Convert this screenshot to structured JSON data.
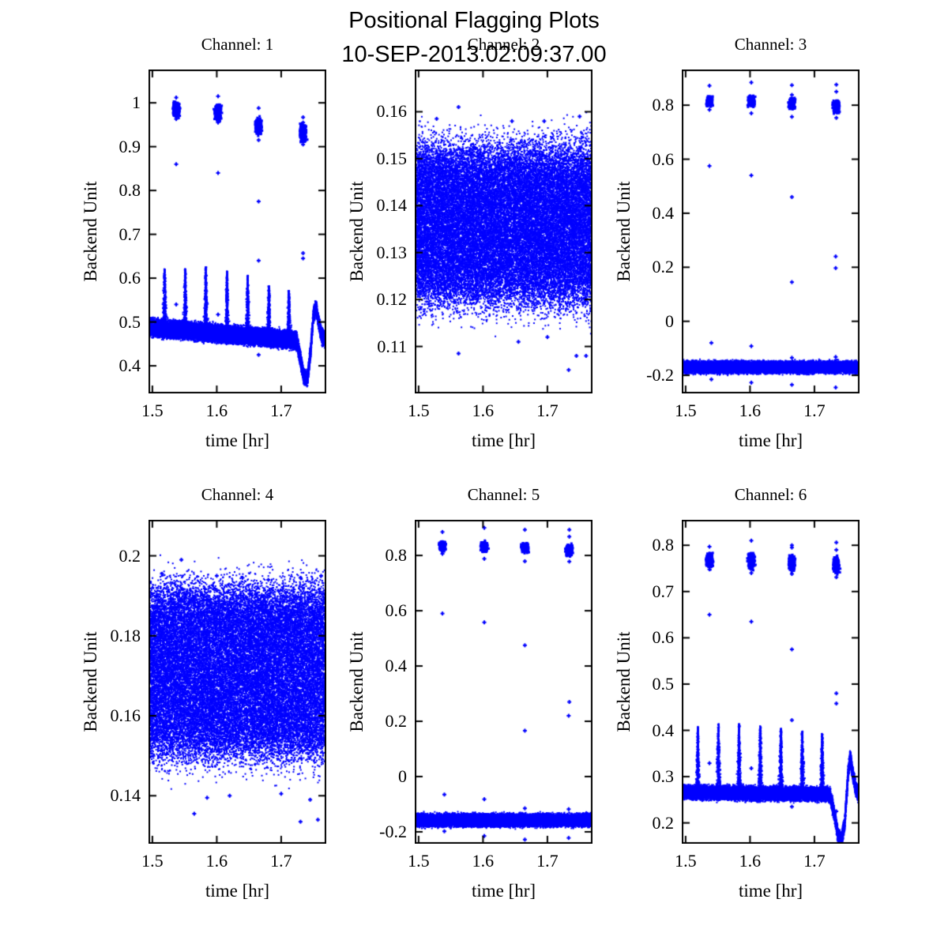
{
  "figure": {
    "title": "Positional Flagging Plots",
    "subtitle": "10-SEP-2013.02:09:37.00",
    "background_color": "#ffffff",
    "axis_color": "#000000",
    "marker_color": "#0000ff"
  },
  "chart_data": [
    {
      "type": "scatter",
      "title": "Channel: 1",
      "xlabel": "time [hr]",
      "ylabel": "Backend Unit",
      "marker": "+",
      "marker_color": "#0000ff",
      "grid": false,
      "legend": "none",
      "xlim": [
        1.494,
        1.77
      ],
      "ylim": [
        0.337,
        1.076
      ],
      "xticks": {
        "values": [
          1.5,
          1.6,
          1.7
        ],
        "labels": [
          "1.5",
          "1.6",
          "1.7"
        ]
      },
      "yticks": {
        "values": [
          0.4,
          0.5,
          0.6,
          0.7,
          0.8,
          0.9,
          1.0
        ],
        "labels": [
          "0.4",
          "0.5",
          "0.6",
          "0.7",
          "0.8",
          "0.9",
          "1"
        ]
      },
      "components": [
        {
          "kind": "trend_band",
          "x_range": [
            1.494,
            1.724
          ],
          "y_start": 0.488,
          "y_end": 0.458,
          "y_spread": 0.019,
          "n": 9000
        },
        {
          "kind": "spikes",
          "x": [
            1.519,
            1.551,
            1.583,
            1.616,
            1.648,
            1.681,
            1.712
          ],
          "tops": [
            0.622,
            0.622,
            0.626,
            0.616,
            0.606,
            0.582,
            0.572
          ],
          "bases": [
            0.486,
            0.482,
            0.478,
            0.474,
            0.47,
            0.466,
            0.462
          ],
          "n_per": 380
        },
        {
          "kind": "path_band",
          "points": [
            [
              1.724,
              0.46
            ],
            [
              1.731,
              0.408
            ],
            [
              1.735,
              0.374
            ],
            [
              1.741,
              0.372
            ],
            [
              1.746,
              0.438
            ],
            [
              1.75,
              0.515
            ],
            [
              1.754,
              0.535
            ],
            [
              1.758,
              0.5
            ],
            [
              1.763,
              0.468
            ],
            [
              1.768,
              0.458
            ]
          ],
          "y_spread": 0.013,
          "n": 2600
        },
        {
          "kind": "clusters",
          "x": [
            1.537,
            1.602,
            1.665,
            1.734
          ],
          "y": [
            0.985,
            0.977,
            0.948,
            0.931
          ],
          "x_spread": 0.004,
          "y_spread": [
            0.012,
            0.013,
            0.012,
            0.016
          ],
          "n_per": 240
        },
        {
          "kind": "points",
          "pts": [
            [
              1.537,
              1.012
            ],
            [
              1.537,
              0.963
            ],
            [
              1.537,
              0.86
            ],
            [
              1.537,
              0.54
            ],
            [
              1.602,
              1.015
            ],
            [
              1.602,
              0.955
            ],
            [
              1.602,
              0.84
            ],
            [
              1.602,
              0.517
            ],
            [
              1.602,
              0.462
            ],
            [
              1.665,
              0.988
            ],
            [
              1.665,
              0.915
            ],
            [
              1.665,
              0.775
            ],
            [
              1.665,
              0.64
            ],
            [
              1.665,
              0.425
            ],
            [
              1.734,
              0.967
            ],
            [
              1.734,
              0.955
            ],
            [
              1.734,
              0.905
            ],
            [
              1.734,
              0.657
            ],
            [
              1.734,
              0.645
            ]
          ]
        }
      ]
    },
    {
      "type": "scatter",
      "title": "Channel: 2",
      "xlabel": "time [hr]",
      "ylabel": "Backend Unit",
      "marker": "+",
      "marker_color": "#0000ff",
      "grid": false,
      "legend": "none",
      "xlim": [
        1.494,
        1.77
      ],
      "ylim": [
        0.1,
        0.169
      ],
      "xticks": {
        "values": [
          1.5,
          1.6,
          1.7
        ],
        "labels": [
          "1.5",
          "1.6",
          "1.7"
        ]
      },
      "yticks": {
        "values": [
          0.11,
          0.12,
          0.13,
          0.14,
          0.15,
          0.16
        ],
        "labels": [
          "0.11",
          "0.12",
          "0.13",
          "0.14",
          "0.15",
          "0.16"
        ]
      },
      "components": [
        {
          "kind": "noise_band",
          "x_range": [
            1.494,
            1.768
          ],
          "y_center": 0.136,
          "y_core": 0.0145,
          "y_tail": 0.0032,
          "n": 30000
        },
        {
          "kind": "points",
          "pts": [
            [
              1.528,
              0.1585
            ],
            [
              1.562,
              0.161
            ],
            [
              1.645,
              0.158
            ],
            [
              1.695,
              0.158
            ],
            [
              1.75,
              0.159
            ],
            [
              1.562,
              0.1085
            ],
            [
              1.655,
              0.111
            ],
            [
              1.7,
              0.112
            ],
            [
              1.733,
              0.105
            ],
            [
              1.745,
              0.108
            ],
            [
              1.76,
              0.108
            ]
          ]
        }
      ]
    },
    {
      "type": "scatter",
      "title": "Channel: 3",
      "xlabel": "time [hr]",
      "ylabel": "Backend Unit",
      "marker": "+",
      "marker_color": "#0000ff",
      "grid": false,
      "legend": "none",
      "xlim": [
        1.494,
        1.77
      ],
      "ylim": [
        -0.267,
        0.932
      ],
      "xticks": {
        "values": [
          1.5,
          1.6,
          1.7
        ],
        "labels": [
          "1.5",
          "1.6",
          "1.7"
        ]
      },
      "yticks": {
        "values": [
          -0.2,
          0.0,
          0.2,
          0.4,
          0.6,
          0.8
        ],
        "labels": [
          "-0.2",
          "0",
          "0.2",
          "0.4",
          "0.6",
          "0.8"
        ]
      },
      "components": [
        {
          "kind": "noise_band",
          "x_range": [
            1.494,
            1.768
          ],
          "y_center": -0.17,
          "y_core": 0.02,
          "y_tail": 0.004,
          "n": 9500
        },
        {
          "kind": "clusters",
          "x": [
            1.537,
            1.602,
            1.665,
            1.734
          ],
          "y": [
            0.812,
            0.815,
            0.806,
            0.795
          ],
          "x_spread": 0.004,
          "y_spread": [
            0.014,
            0.014,
            0.015,
            0.018
          ],
          "n_per": 230
        },
        {
          "kind": "points",
          "pts": [
            [
              1.537,
              0.872
            ],
            [
              1.602,
              0.884
            ],
            [
              1.665,
              0.874
            ],
            [
              1.665,
              0.838
            ],
            [
              1.734,
              0.876
            ],
            [
              1.734,
              0.85
            ],
            [
              1.537,
              0.783
            ],
            [
              1.602,
              0.77
            ],
            [
              1.665,
              0.757
            ],
            [
              1.734,
              0.753
            ],
            [
              1.537,
              0.575
            ],
            [
              1.602,
              0.54
            ],
            [
              1.665,
              0.46
            ],
            [
              1.665,
              0.145
            ],
            [
              1.733,
              0.24
            ],
            [
              1.733,
              0.197
            ],
            [
              1.54,
              -0.08
            ],
            [
              1.602,
              -0.092
            ],
            [
              1.665,
              -0.135
            ],
            [
              1.733,
              -0.132
            ],
            [
              1.54,
              -0.215
            ],
            [
              1.602,
              -0.227
            ],
            [
              1.665,
              -0.235
            ],
            [
              1.733,
              -0.245
            ]
          ]
        }
      ]
    },
    {
      "type": "scatter",
      "title": "Channel: 4",
      "xlabel": "time [hr]",
      "ylabel": "Backend Unit",
      "marker": "+",
      "marker_color": "#0000ff",
      "grid": false,
      "legend": "none",
      "xlim": [
        1.494,
        1.77
      ],
      "ylim": [
        0.128,
        0.209
      ],
      "xticks": {
        "values": [
          1.5,
          1.6,
          1.7
        ],
        "labels": [
          "1.5",
          "1.6",
          "1.7"
        ]
      },
      "yticks": {
        "values": [
          0.14,
          0.16,
          0.18,
          0.2
        ],
        "labels": [
          "0.14",
          "0.16",
          "0.18",
          "0.2"
        ]
      },
      "components": [
        {
          "kind": "noise_band",
          "x_range": [
            1.494,
            1.768
          ],
          "y_center": 0.171,
          "y_core": 0.019,
          "y_tail": 0.0035,
          "n": 30000
        },
        {
          "kind": "points",
          "pts": [
            [
              1.545,
              0.199
            ],
            [
              1.515,
              0.1955
            ],
            [
              1.6,
              0.195
            ],
            [
              1.64,
              0.1945
            ],
            [
              1.68,
              0.194
            ],
            [
              1.73,
              0.1945
            ],
            [
              1.762,
              0.195
            ],
            [
              1.565,
              0.1355
            ],
            [
              1.585,
              0.1395
            ],
            [
              1.62,
              0.14
            ],
            [
              1.7,
              0.1405
            ],
            [
              1.73,
              0.1335
            ],
            [
              1.745,
              0.139
            ],
            [
              1.757,
              0.134
            ]
          ]
        }
      ]
    },
    {
      "type": "scatter",
      "title": "Channel: 5",
      "xlabel": "time [hr]",
      "ylabel": "Backend Unit",
      "marker": "+",
      "marker_color": "#0000ff",
      "grid": false,
      "legend": "none",
      "xlim": [
        1.494,
        1.77
      ],
      "ylim": [
        -0.243,
        0.929
      ],
      "xticks": {
        "values": [
          1.5,
          1.6,
          1.7
        ],
        "labels": [
          "1.5",
          "1.6",
          "1.7"
        ]
      },
      "yticks": {
        "values": [
          -0.2,
          0.0,
          0.2,
          0.4,
          0.6,
          0.8
        ],
        "labels": [
          "-0.2",
          "0",
          "0.2",
          "0.4",
          "0.6",
          "0.8"
        ]
      },
      "components": [
        {
          "kind": "noise_band",
          "x_range": [
            1.494,
            1.768
          ],
          "y_center": -0.158,
          "y_core": 0.021,
          "y_tail": 0.004,
          "n": 9500
        },
        {
          "kind": "clusters",
          "x": [
            1.537,
            1.602,
            1.665,
            1.734
          ],
          "y": [
            0.834,
            0.831,
            0.827,
            0.818
          ],
          "x_spread": 0.004,
          "y_spread": [
            0.013,
            0.014,
            0.013,
            0.017
          ],
          "n_per": 230
        },
        {
          "kind": "points",
          "pts": [
            [
              1.537,
              0.885
            ],
            [
              1.602,
              0.9
            ],
            [
              1.665,
              0.893
            ],
            [
              1.734,
              0.893
            ],
            [
              1.734,
              0.868
            ],
            [
              1.537,
              0.806
            ],
            [
              1.602,
              0.788
            ],
            [
              1.665,
              0.779
            ],
            [
              1.734,
              0.778
            ],
            [
              1.537,
              0.59
            ],
            [
              1.602,
              0.558
            ],
            [
              1.665,
              0.475
            ],
            [
              1.665,
              0.166
            ],
            [
              1.734,
              0.27
            ],
            [
              1.733,
              0.22
            ],
            [
              1.54,
              -0.065
            ],
            [
              1.602,
              -0.082
            ],
            [
              1.665,
              -0.115
            ],
            [
              1.733,
              -0.118
            ],
            [
              1.54,
              -0.198
            ],
            [
              1.602,
              -0.215
            ],
            [
              1.665,
              -0.228
            ],
            [
              1.733,
              -0.222
            ]
          ]
        }
      ]
    },
    {
      "type": "scatter",
      "title": "Channel: 6",
      "xlabel": "time [hr]",
      "ylabel": "Backend Unit",
      "marker": "+",
      "marker_color": "#0000ff",
      "grid": false,
      "legend": "none",
      "xlim": [
        1.494,
        1.77
      ],
      "ylim": [
        0.155,
        0.855
      ],
      "xticks": {
        "values": [
          1.5,
          1.6,
          1.7
        ],
        "labels": [
          "1.5",
          "1.6",
          "1.7"
        ]
      },
      "yticks": {
        "values": [
          0.2,
          0.3,
          0.4,
          0.5,
          0.6,
          0.7,
          0.8
        ],
        "labels": [
          "0.2",
          "0.3",
          "0.4",
          "0.5",
          "0.6",
          "0.7",
          "0.8"
        ]
      },
      "components": [
        {
          "kind": "trend_band",
          "x_range": [
            1.494,
            1.724
          ],
          "y_start": 0.266,
          "y_end": 0.262,
          "y_spread": 0.013,
          "n": 9000
        },
        {
          "kind": "spikes",
          "x": [
            1.519,
            1.551,
            1.583,
            1.616,
            1.648,
            1.681,
            1.712
          ],
          "tops": [
            0.408,
            0.414,
            0.414,
            0.409,
            0.404,
            0.398,
            0.393
          ],
          "bases": [
            0.272,
            0.272,
            0.272,
            0.272,
            0.272,
            0.272,
            0.272
          ],
          "n_per": 380
        },
        {
          "kind": "path_band",
          "points": [
            [
              1.724,
              0.262
            ],
            [
              1.732,
              0.212
            ],
            [
              1.737,
              0.17
            ],
            [
              1.742,
              0.163
            ],
            [
              1.747,
              0.198
            ],
            [
              1.752,
              0.3
            ],
            [
              1.7555,
              0.345
            ],
            [
              1.759,
              0.31
            ],
            [
              1.764,
              0.275
            ],
            [
              1.768,
              0.263
            ]
          ],
          "y_spread": 0.011,
          "n": 2600
        },
        {
          "kind": "clusters",
          "x": [
            1.537,
            1.602,
            1.665,
            1.734
          ],
          "y": [
            0.768,
            0.766,
            0.762,
            0.757
          ],
          "x_spread": 0.004,
          "y_spread": [
            0.011,
            0.012,
            0.012,
            0.013
          ],
          "n_per": 240
        },
        {
          "kind": "points",
          "pts": [
            [
              1.537,
              0.797
            ],
            [
              1.537,
              0.748
            ],
            [
              1.602,
              0.81
            ],
            [
              1.602,
              0.74
            ],
            [
              1.665,
              0.8
            ],
            [
              1.665,
              0.795
            ],
            [
              1.665,
              0.738
            ],
            [
              1.734,
              0.806
            ],
            [
              1.734,
              0.79
            ],
            [
              1.734,
              0.731
            ],
            [
              1.537,
              0.65
            ],
            [
              1.602,
              0.635
            ],
            [
              1.665,
              0.575
            ],
            [
              1.734,
              0.48
            ],
            [
              1.734,
              0.458
            ],
            [
              1.665,
              0.422
            ],
            [
              1.537,
              0.329
            ],
            [
              1.602,
              0.318
            ],
            [
              1.665,
              0.235
            ],
            [
              1.734,
              0.225
            ]
          ]
        }
      ]
    }
  ]
}
